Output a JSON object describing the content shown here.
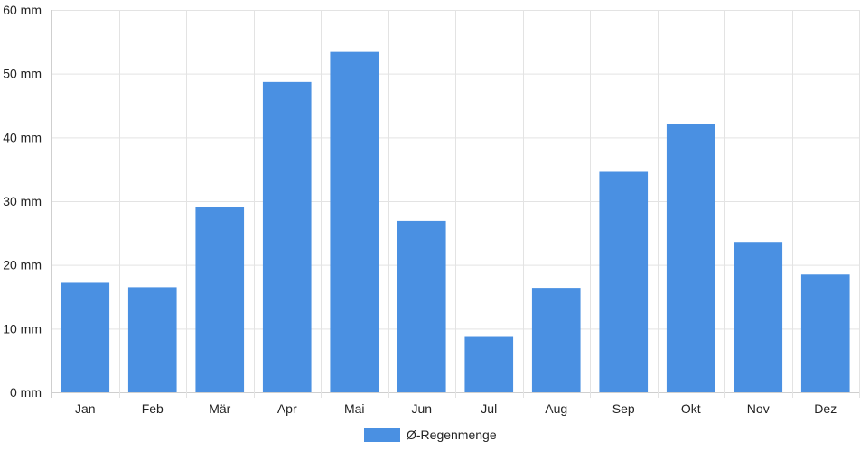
{
  "chart_data": {
    "type": "bar",
    "categories": [
      "Jan",
      "Feb",
      "Mär",
      "Apr",
      "Mai",
      "Jun",
      "Jul",
      "Aug",
      "Sep",
      "Okt",
      "Nov",
      "Dez"
    ],
    "series": [
      {
        "name": "Ø-Regenmenge",
        "values": [
          17.2,
          16.5,
          29.1,
          48.7,
          53.4,
          26.9,
          8.7,
          16.4,
          34.6,
          42.1,
          23.6,
          18.5
        ],
        "color": "#4a90e2"
      }
    ],
    "yticks": [
      "0 mm",
      "10 mm",
      "20 mm",
      "30 mm",
      "40 mm",
      "50 mm",
      "60 mm"
    ],
    "ylim": [
      0,
      60
    ],
    "grid": true,
    "legend": "bottom-center"
  }
}
